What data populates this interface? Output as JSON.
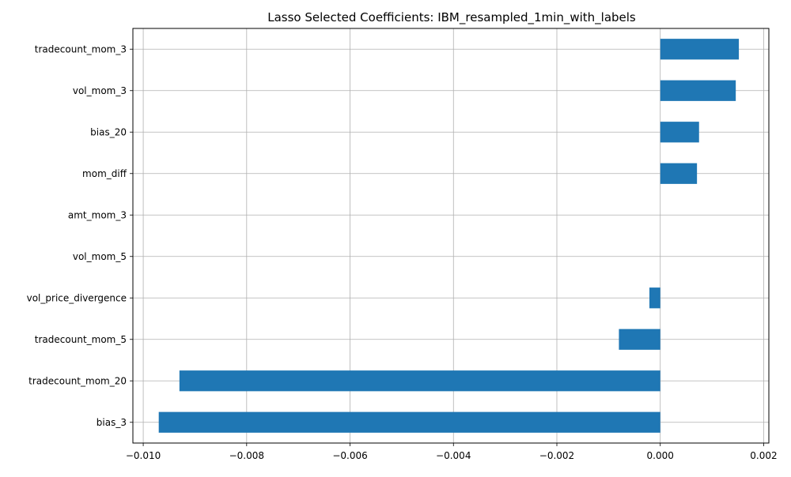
{
  "chart_data": {
    "type": "bar",
    "orientation": "horizontal",
    "title": "Lasso Selected Coefficients: IBM_resampled_1min_with_labels",
    "xlabel": "",
    "ylabel": "",
    "categories": [
      "tradecount_mom_3",
      "vol_mom_3",
      "bias_20",
      "mom_diff",
      "amt_mom_3",
      "vol_mom_5",
      "vol_price_divergence",
      "tradecount_mom_5",
      "tradecount_mom_20",
      "bias_3"
    ],
    "values": [
      0.00152,
      0.00146,
      0.00075,
      0.00071,
      0.0,
      0.0,
      -0.00021,
      -0.0008,
      -0.0093,
      -0.0097
    ],
    "xlim": [
      -0.0102,
      0.0021
    ],
    "xticks": [
      -0.01,
      -0.008,
      -0.006,
      -0.004,
      -0.002,
      0.0,
      0.002
    ],
    "xtick_labels": [
      "−0.010",
      "−0.008",
      "−0.006",
      "−0.004",
      "−0.002",
      "0.000",
      "0.002"
    ],
    "grid": true,
    "bar_color": "#1f77b4",
    "grid_color": "#b0b0b0"
  }
}
